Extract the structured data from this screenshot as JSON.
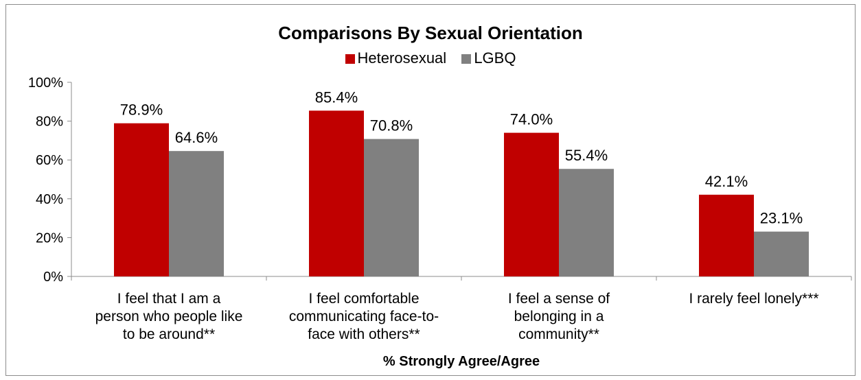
{
  "chart_data": {
    "type": "bar",
    "title": "Comparisons By Sexual Orientation",
    "xlabel": "% Strongly Agree/Agree",
    "ylabel": "",
    "ylim": [
      0,
      100
    ],
    "yticks": [
      "0%",
      "20%",
      "40%",
      "60%",
      "80%",
      "100%"
    ],
    "ytick_values": [
      0,
      20,
      40,
      60,
      80,
      100
    ],
    "categories": [
      [
        "I feel that I am a",
        "person who people like",
        "to be around**"
      ],
      [
        "I feel comfortable",
        "communicating face-to-",
        "face with others**"
      ],
      [
        "I feel a sense of",
        "belonging in a",
        "community**"
      ],
      [
        "I rarely feel lonely***"
      ]
    ],
    "series": [
      {
        "name": "Heterosexual",
        "color": "#c00000",
        "values": [
          78.9,
          85.4,
          74.0,
          42.1
        ],
        "labels": [
          "78.9%",
          "85.4%",
          "74.0%",
          "42.1%"
        ]
      },
      {
        "name": "LGBQ",
        "color": "#808080",
        "values": [
          64.6,
          70.8,
          55.4,
          23.1
        ],
        "labels": [
          "64.6%",
          "70.8%",
          "55.4%",
          "23.1%"
        ]
      }
    ],
    "legend_position": "top",
    "grid": false
  }
}
